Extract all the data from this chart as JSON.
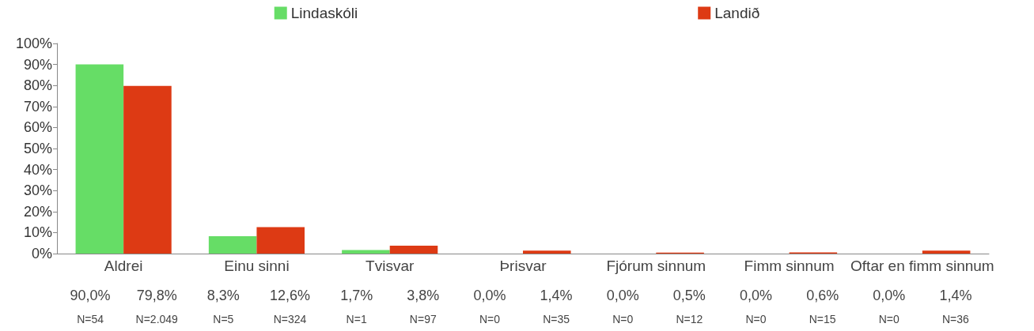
{
  "chart_data": {
    "type": "bar",
    "categories": [
      "Aldrei",
      "Einu sinni",
      "Tvisvar",
      "Þrisvar",
      "Fjórum sinnum",
      "Fimm sinnum",
      "Oftar en fimm sinnum"
    ],
    "series": [
      {
        "name": "Lindaskóli",
        "color": "#66dd66",
        "values": [
          90.0,
          8.3,
          1.7,
          0.0,
          0.0,
          0.0,
          0.0
        ],
        "value_labels": [
          "90,0%",
          "8,3%",
          "1,7%",
          "0,0%",
          "0,0%",
          "0,0%",
          "0,0%"
        ]
      },
      {
        "name": "Landið",
        "color": "#dd3a14",
        "values": [
          79.8,
          12.6,
          3.8,
          1.4,
          0.5,
          0.6,
          1.4
        ],
        "value_labels": [
          "79,8%",
          "12,6%",
          "3,8%",
          "1,4%",
          "0,5%",
          "0,6%",
          "1,4%"
        ]
      }
    ],
    "annotations": [
      "N=54",
      "N=2.049",
      "N=5",
      "N=324",
      "N=1",
      "N=97",
      "N=0",
      "N=35",
      "N=0",
      "N=12",
      "N=0",
      "N=15",
      "N=0",
      "N=36"
    ],
    "ylim": [
      0,
      100
    ],
    "yticks": [
      {
        "value": 0,
        "label": "0%"
      },
      {
        "value": 10,
        "label": "10%"
      },
      {
        "value": 20,
        "label": "20%"
      },
      {
        "value": 30,
        "label": "30%"
      },
      {
        "value": 40,
        "label": "40%"
      },
      {
        "value": 50,
        "label": "50%"
      },
      {
        "value": 60,
        "label": "60%"
      },
      {
        "value": 70,
        "label": "70%"
      },
      {
        "value": 80,
        "label": "80%"
      },
      {
        "value": 90,
        "label": "90%"
      },
      {
        "value": 100,
        "label": "100%"
      }
    ],
    "grid": false,
    "legend": "top"
  }
}
